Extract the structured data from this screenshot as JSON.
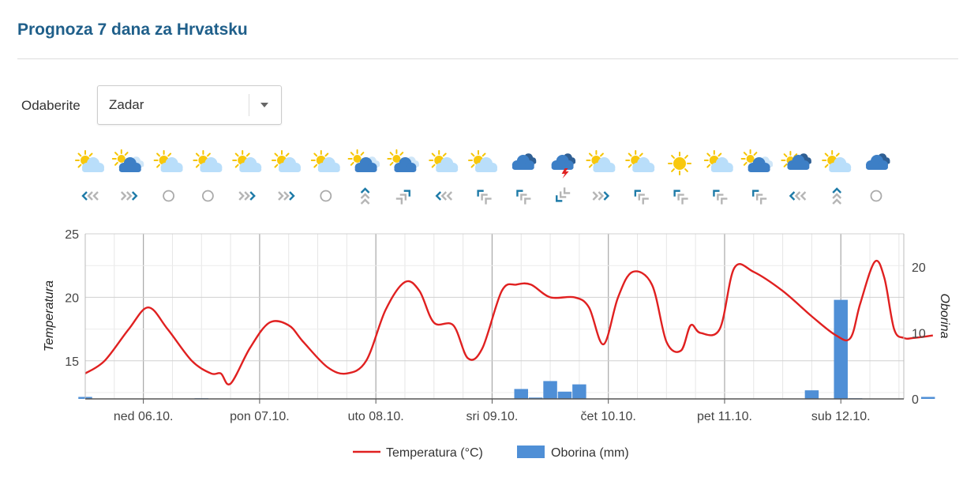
{
  "page": {
    "title": "Prognoza 7 dana za Hrvatsku"
  },
  "selector": {
    "label": "Odaberite",
    "selected": "Zadar"
  },
  "forecast": {
    "weather_icons": [
      "partly-sunny",
      "cloud",
      "partly-sunny",
      "partly-sunny",
      "partly-sunny",
      "partly-sunny",
      "partly-sunny",
      "cloud",
      "cloud",
      "partly-sunny",
      "partly-sunny",
      "rain",
      "thunder",
      "partly-sunny",
      "partly-sunny",
      "sun",
      "partly-sunny",
      "cloud",
      "heavy-rain",
      "partly-sunny",
      "rain"
    ],
    "wind_icons": [
      "left",
      "right",
      "calm",
      "calm",
      "right",
      "right",
      "calm",
      "up",
      "up-right",
      "left",
      "up-left",
      "up-left",
      "down-left",
      "right",
      "up-left",
      "up-left",
      "up-left",
      "up-left",
      "left",
      "up",
      "calm"
    ],
    "colors": {
      "temperature": "#e02020",
      "precipitation": "#4f8fd6",
      "wind_strong": "#1e7ba8",
      "wind_light": "#b5b5b5"
    }
  },
  "chart_data": {
    "type": "line+bar",
    "x_type": "datetime",
    "x_range": [
      "2024-10-05T12:00",
      "2024-10-12T13:00"
    ],
    "x_ticks": [
      "ned 06.10.",
      "pon 07.10.",
      "uto 08.10.",
      "sri 09.10.",
      "čet 10.10.",
      "pet 11.10.",
      "sub 12.10."
    ],
    "y_left": {
      "label": "Temperatura",
      "range": [
        12,
        25
      ],
      "ticks": [
        15,
        20,
        25
      ]
    },
    "y_right": {
      "label": "Oborina",
      "range": [
        0,
        25
      ],
      "ticks": [
        0,
        10,
        20
      ]
    },
    "grid": true,
    "legend_position": "bottom-center",
    "series": [
      {
        "name": "Temperatura (°C)",
        "type": "line",
        "points": [
          [
            "2024-10-05T12:00",
            14.0
          ],
          [
            "2024-10-05T16:00",
            15.0
          ],
          [
            "2024-10-05T21:00",
            17.5
          ],
          [
            "2024-10-06T01:00",
            19.2
          ],
          [
            "2024-10-06T05:00",
            17.5
          ],
          [
            "2024-10-06T10:00",
            15.0
          ],
          [
            "2024-10-06T14:00",
            14.0
          ],
          [
            "2024-10-06T16:00",
            14.0
          ],
          [
            "2024-10-06T18:00",
            13.2
          ],
          [
            "2024-10-06T22:00",
            16.0
          ],
          [
            "2024-10-07T02:00",
            18.0
          ],
          [
            "2024-10-07T06:00",
            17.8
          ],
          [
            "2024-10-07T09:00",
            16.5
          ],
          [
            "2024-10-07T14:00",
            14.5
          ],
          [
            "2024-10-07T18:00",
            14.0
          ],
          [
            "2024-10-07T22:00",
            15.0
          ],
          [
            "2024-10-08T02:00",
            19.0
          ],
          [
            "2024-10-08T06:00",
            21.2
          ],
          [
            "2024-10-08T09:00",
            20.5
          ],
          [
            "2024-10-08T12:00",
            18.0
          ],
          [
            "2024-10-08T16:00",
            17.8
          ],
          [
            "2024-10-08T19:00",
            15.2
          ],
          [
            "2024-10-08T22:00",
            16.0
          ],
          [
            "2024-10-09T02:00",
            20.5
          ],
          [
            "2024-10-09T05:00",
            21.0
          ],
          [
            "2024-10-09T08:00",
            21.0
          ],
          [
            "2024-10-09T12:00",
            20.0
          ],
          [
            "2024-10-09T17:00",
            20.0
          ],
          [
            "2024-10-09T20:00",
            19.2
          ],
          [
            "2024-10-09T23:00",
            16.3
          ],
          [
            "2024-10-10T02:00",
            20.0
          ],
          [
            "2024-10-10T05:00",
            22.0
          ],
          [
            "2024-10-10T09:00",
            21.0
          ],
          [
            "2024-10-10T12:00",
            16.5
          ],
          [
            "2024-10-10T15:00",
            15.8
          ],
          [
            "2024-10-10T17:00",
            17.8
          ],
          [
            "2024-10-10T19:00",
            17.2
          ],
          [
            "2024-10-10T23:00",
            17.5
          ],
          [
            "2024-10-11T02:00",
            22.3
          ],
          [
            "2024-10-11T06:00",
            22.0
          ],
          [
            "2024-10-11T12:00",
            20.5
          ],
          [
            "2024-10-11T18:00",
            18.5
          ],
          [
            "2024-10-11T23:00",
            17.0
          ],
          [
            "2024-10-12T02:00",
            16.8
          ],
          [
            "2024-10-12T04:00",
            19.5
          ],
          [
            "2024-10-12T07:00",
            22.8
          ],
          [
            "2024-10-12T09:00",
            21.5
          ],
          [
            "2024-10-12T11:00",
            17.5
          ],
          [
            "2024-10-12T13:00",
            16.8
          ],
          [
            "2024-10-12T15:00",
            16.8
          ],
          [
            "2024-10-12T19:00",
            17.0
          ]
        ]
      },
      {
        "name": "Oborina (mm)",
        "type": "bar",
        "points": [
          [
            "2024-10-05T12:00",
            0.3
          ],
          [
            "2024-10-06T12:00",
            0.1
          ],
          [
            "2024-10-09T06:00",
            1.5
          ],
          [
            "2024-10-09T09:00",
            0.2
          ],
          [
            "2024-10-09T12:00",
            2.7
          ],
          [
            "2024-10-09T15:00",
            1.1
          ],
          [
            "2024-10-09T18:00",
            2.2
          ],
          [
            "2024-10-11T18:00",
            1.3
          ],
          [
            "2024-10-12T00:00",
            15.0
          ],
          [
            "2024-10-12T03:00",
            0.1
          ],
          [
            "2024-10-12T18:00",
            0.3
          ]
        ]
      }
    ]
  }
}
